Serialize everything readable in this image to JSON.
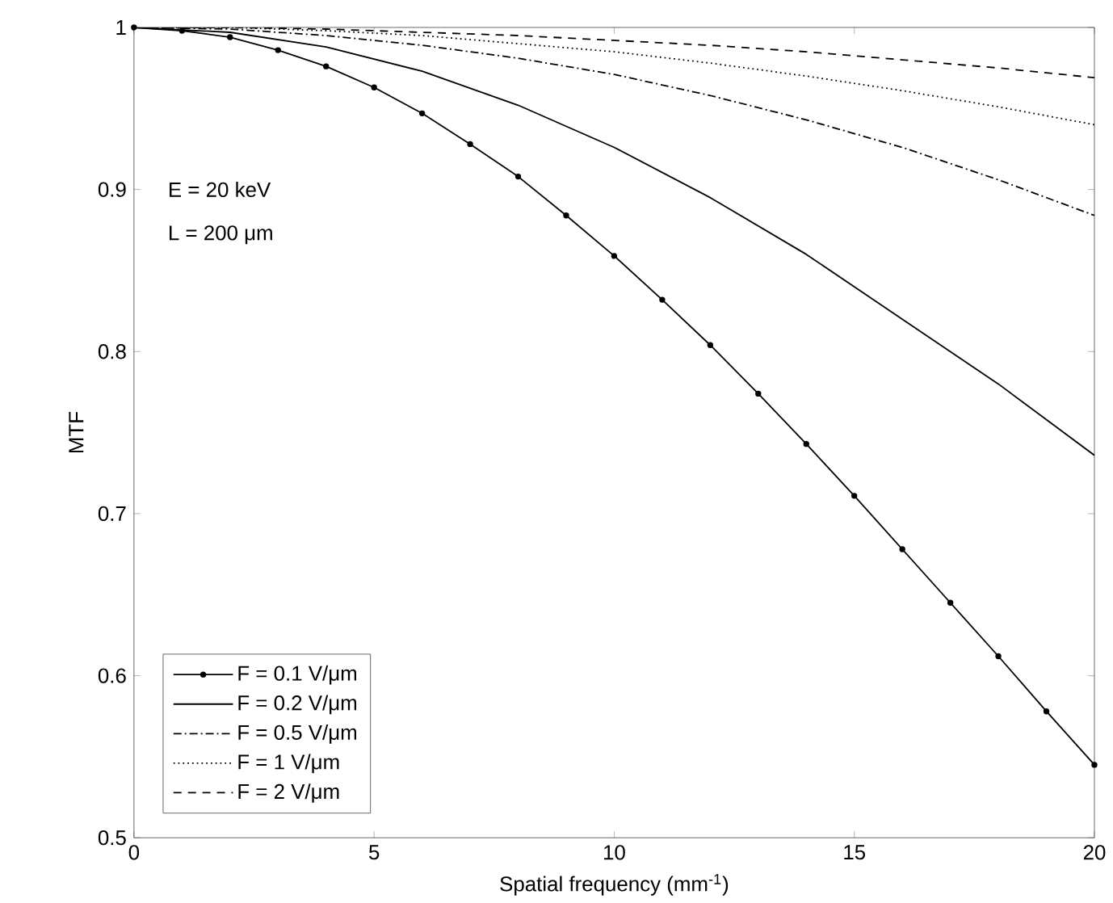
{
  "chart_data": {
    "type": "line",
    "xlabel": "Spatial frequency (mm$^{-1}$)",
    "ylabel": "MTF",
    "xlim": [
      0,
      20
    ],
    "ylim": [
      0.5,
      1
    ],
    "xticks": [
      0,
      5,
      10,
      15,
      20
    ],
    "yticks": [
      0.5,
      0.6,
      0.7,
      0.8,
      0.9,
      1
    ],
    "grid": false,
    "legend": "bottom left",
    "annotations": [
      "E = 20 keV",
      "L = 200 μm"
    ],
    "series": [
      {
        "name": "F = 0.1 V/μm",
        "color": "#000000",
        "marker": "circle",
        "line_style": "solid",
        "x": [
          0,
          1,
          2,
          3,
          4,
          5,
          6,
          7,
          8,
          9,
          10,
          11,
          12,
          13,
          14,
          15,
          16,
          17,
          18,
          19,
          20
        ],
        "values": [
          1,
          0.998,
          0.994,
          0.986,
          0.976,
          0.963,
          0.947,
          0.928,
          0.908,
          0.884,
          0.859,
          0.832,
          0.804,
          0.774,
          0.743,
          0.711,
          0.678,
          0.645,
          0.612,
          0.578,
          0.545
        ]
      },
      {
        "name": "F = 0.2 V/μm",
        "color": "#000000",
        "marker": "none",
        "line_style": "solid",
        "x": [
          0,
          2,
          4,
          6,
          8,
          10,
          12,
          14,
          16,
          18,
          20
        ],
        "values": [
          1,
          0.997,
          0.988,
          0.973,
          0.952,
          0.926,
          0.895,
          0.86,
          0.82,
          0.78,
          0.736
        ]
      },
      {
        "name": "F = 0.5 V/μm",
        "color": "#000000",
        "marker": "none",
        "line_style": "dashdot",
        "x": [
          0,
          2,
          4,
          6,
          8,
          10,
          12,
          14,
          16,
          18,
          20
        ],
        "values": [
          1,
          0.999,
          0.995,
          0.989,
          0.981,
          0.971,
          0.958,
          0.943,
          0.926,
          0.906,
          0.884
        ]
      },
      {
        "name": "F = 1 V/μm",
        "color": "#000000",
        "marker": "none",
        "line_style": "dotted",
        "x": [
          0,
          2,
          4,
          6,
          8,
          10,
          12,
          14,
          16,
          18,
          20
        ],
        "values": [
          1,
          1,
          0.998,
          0.995,
          0.99,
          0.985,
          0.978,
          0.97,
          0.961,
          0.951,
          0.94
        ]
      },
      {
        "name": "F = 2 V/μm",
        "color": "#000000",
        "marker": "none",
        "line_style": "dashed",
        "x": [
          0,
          2,
          4,
          6,
          8,
          10,
          12,
          14,
          16,
          18,
          20
        ],
        "values": [
          1,
          1,
          0.999,
          0.997,
          0.995,
          0.992,
          0.989,
          0.985,
          0.98,
          0.975,
          0.969
        ]
      }
    ]
  }
}
